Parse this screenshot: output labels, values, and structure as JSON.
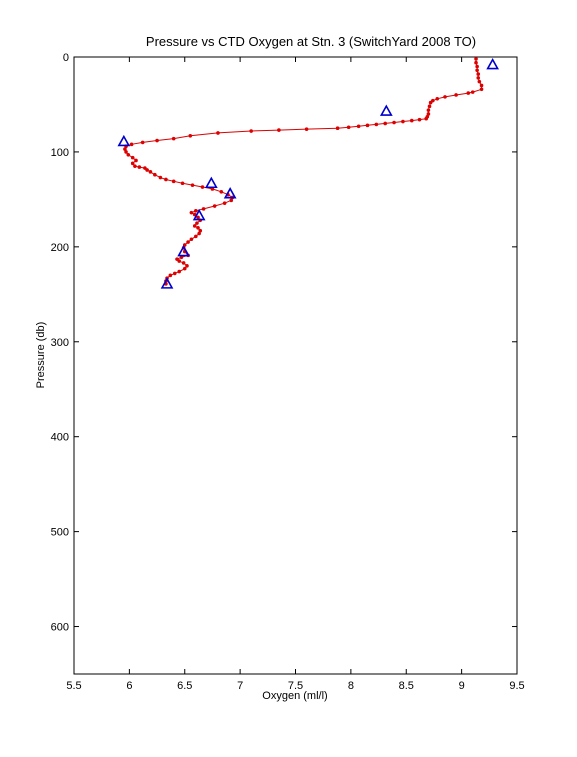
{
  "chart_data": {
    "type": "line",
    "title": "Pressure vs CTD Oxygen at Stn. 3 (SwitchYard 2008 TO)",
    "xlabel": "Oxygen (ml/l)",
    "ylabel": "Pressure (db)",
    "xlim": [
      5.5,
      9.5
    ],
    "ylim": [
      0,
      650
    ],
    "y_reversed": true,
    "grid": false,
    "x_ticks": [
      5.5,
      6,
      6.5,
      7,
      7.5,
      8,
      8.5,
      9,
      9.5
    ],
    "x_tick_labels": [
      "5.5",
      "6",
      "6.5",
      "7",
      "7.5",
      "8",
      "8.5",
      "9",
      "9.5"
    ],
    "y_ticks": [
      0,
      100,
      200,
      300,
      400,
      500,
      600
    ],
    "y_tick_labels": [
      "0",
      "100",
      "200",
      "300",
      "400",
      "500",
      "600"
    ],
    "series": [
      {
        "kind": "ctd-profile",
        "color": "#dd0000",
        "marker": "dot",
        "points": [
          [
            9.13,
            2
          ],
          [
            9.13,
            6
          ],
          [
            9.14,
            10
          ],
          [
            9.14,
            14
          ],
          [
            9.15,
            18
          ],
          [
            9.15,
            22
          ],
          [
            9.16,
            26
          ],
          [
            9.18,
            30
          ],
          [
            9.18,
            34
          ],
          [
            9.1,
            37
          ],
          [
            9.06,
            38
          ],
          [
            8.95,
            40
          ],
          [
            8.85,
            42
          ],
          [
            8.78,
            44
          ],
          [
            8.74,
            46
          ],
          [
            8.72,
            48
          ],
          [
            8.71,
            52
          ],
          [
            8.7,
            56
          ],
          [
            8.7,
            60
          ],
          [
            8.69,
            63
          ],
          [
            8.68,
            65
          ],
          [
            8.62,
            66
          ],
          [
            8.55,
            67
          ],
          [
            8.47,
            68
          ],
          [
            8.39,
            69
          ],
          [
            8.31,
            70
          ],
          [
            8.23,
            71
          ],
          [
            8.15,
            72
          ],
          [
            8.07,
            73
          ],
          [
            7.98,
            74
          ],
          [
            7.88,
            75
          ],
          [
            7.6,
            76
          ],
          [
            7.35,
            77
          ],
          [
            7.1,
            78
          ],
          [
            6.8,
            80
          ],
          [
            6.55,
            83
          ],
          [
            6.4,
            86
          ],
          [
            6.25,
            88
          ],
          [
            6.12,
            90
          ],
          [
            6.02,
            92
          ],
          [
            5.97,
            94
          ],
          [
            5.96,
            97
          ],
          [
            5.97,
            100
          ],
          [
            5.99,
            103
          ],
          [
            6.03,
            106
          ],
          [
            6.06,
            109
          ],
          [
            6.03,
            112
          ],
          [
            6.05,
            115
          ],
          [
            6.09,
            116
          ],
          [
            6.14,
            117
          ],
          [
            6.16,
            119
          ],
          [
            6.19,
            121
          ],
          [
            6.23,
            124
          ],
          [
            6.28,
            127
          ],
          [
            6.33,
            129
          ],
          [
            6.4,
            131
          ],
          [
            6.48,
            133
          ],
          [
            6.57,
            135
          ],
          [
            6.66,
            137
          ],
          [
            6.75,
            139
          ],
          [
            6.83,
            142
          ],
          [
            6.89,
            145
          ],
          [
            6.93,
            148
          ],
          [
            6.92,
            151
          ],
          [
            6.86,
            154
          ],
          [
            6.77,
            157
          ],
          [
            6.67,
            160
          ],
          [
            6.6,
            162
          ],
          [
            6.56,
            164
          ],
          [
            6.59,
            166
          ],
          [
            6.62,
            169
          ],
          [
            6.64,
            172
          ],
          [
            6.61,
            175
          ],
          [
            6.59,
            178
          ],
          [
            6.62,
            180
          ],
          [
            6.64,
            183
          ],
          [
            6.63,
            186
          ],
          [
            6.6,
            189
          ],
          [
            6.56,
            192
          ],
          [
            6.53,
            195
          ],
          [
            6.5,
            198
          ],
          [
            6.49,
            201
          ],
          [
            6.5,
            205
          ],
          [
            6.53,
            209
          ],
          [
            6.47,
            211
          ],
          [
            6.43,
            213
          ],
          [
            6.45,
            215
          ],
          [
            6.49,
            217
          ],
          [
            6.52,
            220
          ],
          [
            6.5,
            223
          ],
          [
            6.45,
            226
          ],
          [
            6.41,
            228
          ],
          [
            6.37,
            230
          ],
          [
            6.34,
            233
          ],
          [
            6.33,
            236
          ],
          [
            6.33,
            239
          ]
        ]
      },
      {
        "kind": "bottle-samples",
        "color": "#0000cc",
        "marker": "triangle",
        "points": [
          [
            9.28,
            8
          ],
          [
            8.32,
            57
          ],
          [
            5.95,
            89
          ],
          [
            6.74,
            133
          ],
          [
            6.91,
            144
          ],
          [
            6.63,
            167
          ],
          [
            6.49,
            205
          ],
          [
            6.34,
            239
          ]
        ]
      }
    ]
  }
}
